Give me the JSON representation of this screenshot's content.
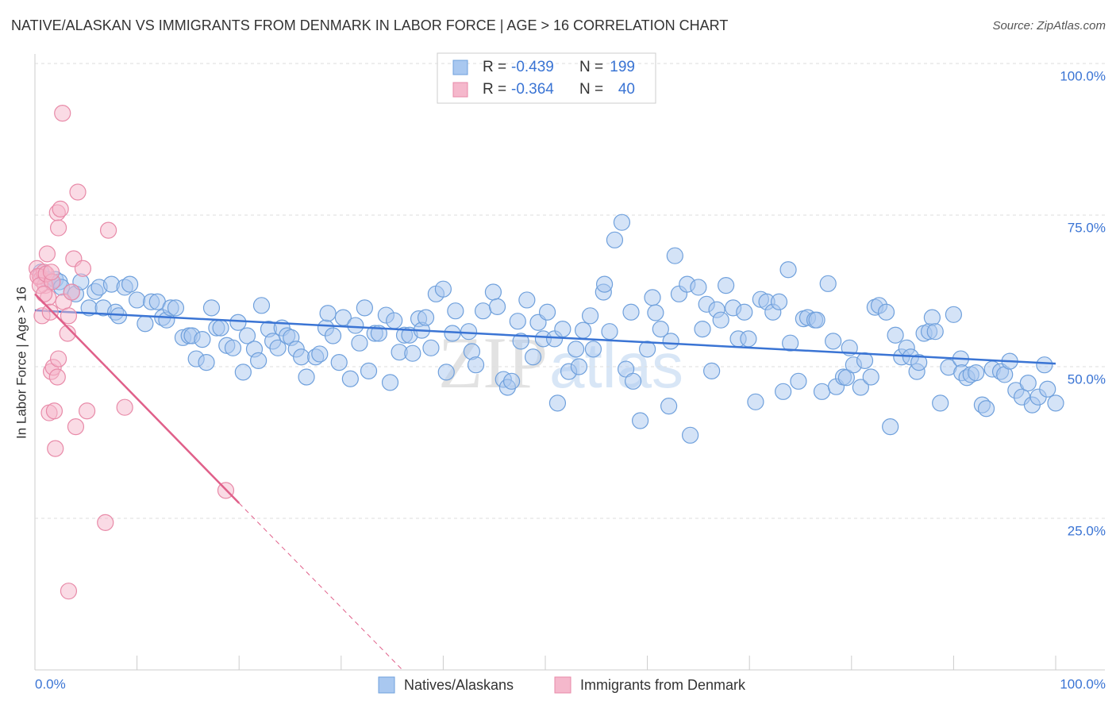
{
  "chart_data": {
    "type": "scatter",
    "title": "NATIVE/ALASKAN VS IMMIGRANTS FROM DENMARK IN LABOR FORCE | AGE > 16 CORRELATION CHART",
    "source": "Source: ZipAtlas.com",
    "ylabel": "In Labor Force | Age > 16",
    "watermark": [
      "ZIP",
      "atlas"
    ],
    "legend_labels": {
      "r": "R =",
      "n": "N ="
    },
    "xlim": [
      0,
      100
    ],
    "ylim": [
      0,
      100
    ],
    "xticks": [
      {
        "value": 0,
        "label": "0.0%"
      },
      {
        "value": 10,
        "label": null
      },
      {
        "value": 20,
        "label": null
      },
      {
        "value": 30,
        "label": null
      },
      {
        "value": 40,
        "label": null
      },
      {
        "value": 50,
        "label": null
      },
      {
        "value": 60,
        "label": null
      },
      {
        "value": 70,
        "label": null
      },
      {
        "value": 80,
        "label": null
      },
      {
        "value": 90,
        "label": null
      },
      {
        "value": 100,
        "label": "100.0%"
      }
    ],
    "yticks": [
      {
        "value": 25,
        "label": "25.0%"
      },
      {
        "value": 50,
        "label": "50.0%"
      },
      {
        "value": 75,
        "label": "75.0%"
      },
      {
        "value": 100,
        "label": "100.0%"
      }
    ],
    "grid": true,
    "series": [
      {
        "name": "Natives/Alaskans",
        "color": "#6fa0dc",
        "fill": "#a9c8f0",
        "line_color": "#3a74d4",
        "r": -0.439,
        "n": 199,
        "x": [
          0.6,
          1.2,
          1.6,
          2.0,
          2.4,
          2.6,
          3.6,
          4.0,
          4.5,
          5.3,
          5.9,
          6.3,
          6.7,
          7.5,
          7.9,
          8.2,
          8.8,
          9.3,
          10.0,
          10.8,
          11.4,
          12.0,
          12.5,
          12.9,
          13.3,
          13.8,
          14.5,
          15.1,
          15.4,
          15.8,
          16.4,
          16.8,
          17.3,
          17.8,
          18.2,
          18.8,
          19.4,
          19.9,
          20.4,
          20.8,
          21.5,
          21.9,
          22.2,
          22.9,
          23.3,
          23.8,
          24.2,
          24.7,
          25.1,
          25.6,
          26.1,
          26.6,
          27.5,
          27.9,
          28.5,
          28.7,
          29.2,
          29.8,
          30.2,
          30.9,
          31.4,
          31.8,
          32.3,
          32.7,
          33.3,
          33.7,
          34.4,
          34.8,
          35.2,
          35.7,
          36.2,
          36.7,
          37.0,
          37.6,
          37.9,
          38.3,
          38.8,
          39.3,
          40.0,
          40.3,
          40.9,
          41.2,
          42.5,
          42.8,
          43.2,
          43.9,
          44.9,
          45.3,
          45.9,
          46.3,
          46.7,
          47.3,
          47.6,
          48.2,
          48.8,
          49.3,
          49.8,
          50.2,
          50.9,
          51.2,
          51.7,
          52.3,
          53.0,
          53.3,
          53.7,
          54.4,
          54.7,
          55.7,
          55.8,
          56.3,
          56.8,
          57.5,
          57.9,
          58.4,
          58.6,
          59.3,
          60.0,
          60.5,
          60.8,
          61.3,
          62.1,
          62.3,
          62.7,
          63.1,
          63.9,
          64.2,
          65.0,
          65.4,
          65.8,
          66.3,
          66.8,
          67.2,
          67.7,
          68.4,
          68.9,
          69.5,
          69.9,
          70.6,
          71.1,
          71.7,
          72.3,
          72.9,
          73.3,
          73.8,
          74.0,
          74.8,
          75.3,
          75.7,
          76.4,
          76.6,
          77.1,
          77.7,
          78.2,
          78.5,
          79.2,
          79.5,
          79.8,
          80.2,
          80.9,
          81.3,
          81.9,
          82.3,
          82.7,
          83.4,
          83.8,
          84.3,
          84.9,
          85.4,
          85.8,
          86.4,
          86.6,
          87.1,
          87.6,
          87.9,
          88.2,
          88.7,
          89.5,
          90.0,
          90.7,
          90.8,
          91.3,
          91.7,
          92.2,
          92.8,
          93.2,
          93.8,
          94.6,
          95.0,
          95.5,
          96.1,
          96.7,
          97.3,
          97.7,
          98.3,
          98.9,
          99.2,
          100.0
        ],
        "y": [
          65.6,
          64.4,
          64.0,
          64.4,
          64.0,
          63.1,
          62.3,
          62.0,
          64.0,
          59.7,
          62.4,
          63.1,
          59.7,
          63.6,
          59.0,
          58.4,
          63.1,
          63.6,
          61.0,
          57.1,
          60.7,
          60.7,
          58.1,
          57.7,
          59.7,
          59.7,
          54.8,
          55.1,
          55.1,
          51.3,
          54.5,
          50.7,
          59.7,
          56.4,
          56.4,
          53.5,
          53.1,
          57.3,
          49.1,
          55.1,
          52.9,
          51.0,
          60.1,
          56.2,
          54.2,
          53.1,
          56.4,
          55.1,
          54.8,
          52.9,
          51.6,
          48.3,
          51.6,
          52.1,
          56.4,
          58.8,
          55.1,
          50.7,
          58.1,
          48.0,
          56.8,
          53.9,
          59.7,
          49.3,
          55.5,
          55.5,
          58.5,
          47.4,
          57.6,
          52.4,
          55.2,
          55.2,
          52.2,
          57.9,
          56.0,
          58.1,
          53.1,
          62.0,
          62.8,
          49.1,
          55.5,
          59.2,
          55.8,
          52.5,
          50.3,
          59.2,
          62.3,
          59.9,
          47.9,
          46.6,
          47.6,
          57.5,
          54.2,
          61.0,
          51.6,
          57.3,
          54.6,
          59.0,
          54.6,
          44.0,
          56.2,
          49.2,
          52.9,
          50.0,
          56.0,
          58.4,
          52.9,
          62.3,
          63.6,
          55.8,
          70.9,
          73.8,
          49.6,
          59.0,
          47.6,
          41.1,
          52.9,
          61.4,
          58.9,
          56.2,
          43.5,
          54.2,
          68.3,
          62.0,
          63.6,
          38.7,
          63.1,
          56.2,
          60.3,
          49.3,
          59.4,
          57.7,
          63.4,
          59.7,
          54.6,
          59.0,
          54.6,
          44.2,
          61.1,
          60.7,
          59.0,
          60.7,
          45.9,
          66.0,
          53.9,
          47.6,
          57.9,
          58.1,
          57.7,
          57.7,
          45.9,
          63.7,
          54.2,
          46.7,
          48.3,
          48.2,
          53.1,
          50.3,
          46.6,
          51.0,
          48.3,
          59.8,
          60.1,
          59.0,
          40.1,
          55.2,
          51.6,
          53.1,
          51.6,
          49.2,
          50.7,
          55.5,
          55.8,
          58.1,
          55.8,
          44.0,
          49.9,
          58.6,
          51.3,
          49.0,
          48.2,
          48.7,
          49.0,
          43.7,
          43.1,
          49.6,
          49.2,
          48.7,
          50.9,
          46.1,
          45.0,
          47.3,
          43.7,
          45.0,
          50.3,
          46.3,
          44.0
        ],
        "trend": {
          "x": [
            0,
            100
          ],
          "y": [
            59.3,
            50.5
          ]
        }
      },
      {
        "name": "Immigrants from Denmark",
        "color": "#e88aa8",
        "fill": "#f5b8cc",
        "line_color": "#e0608a",
        "r": -0.364,
        "n": 40,
        "x": [
          0.2,
          0.5,
          0.6,
          0.9,
          1.0,
          0.7,
          1.2,
          1.3,
          1.5,
          1.6,
          1.8,
          1.4,
          1.9,
          2.0,
          2.2,
          2.3,
          2.3,
          2.5,
          2.7,
          2.8,
          3.2,
          3.3,
          3.3,
          3.6,
          3.8,
          4.0,
          4.2,
          4.7,
          5.1,
          7.2,
          6.9,
          8.8,
          18.7,
          0.3,
          0.5,
          1.1,
          1.7,
          0.9,
          2.2,
          1.6
        ],
        "y": [
          66.2,
          64.9,
          64.4,
          65.6,
          63.4,
          58.4,
          68.6,
          61.4,
          59.0,
          49.2,
          49.9,
          42.4,
          42.7,
          36.5,
          75.4,
          51.3,
          72.9,
          76.0,
          91.8,
          60.7,
          55.5,
          13.0,
          58.4,
          62.3,
          67.8,
          40.1,
          78.8,
          66.2,
          42.7,
          72.5,
          24.3,
          43.3,
          29.6,
          64.9,
          63.4,
          65.3,
          64.0,
          62.0,
          48.3,
          65.6
        ],
        "trend": {
          "x": [
            0,
            20
          ],
          "y": [
            62,
            27.5
          ]
        },
        "trend_dashed": {
          "x": [
            20,
            36
          ],
          "y": [
            27.5,
            0
          ]
        }
      }
    ]
  }
}
